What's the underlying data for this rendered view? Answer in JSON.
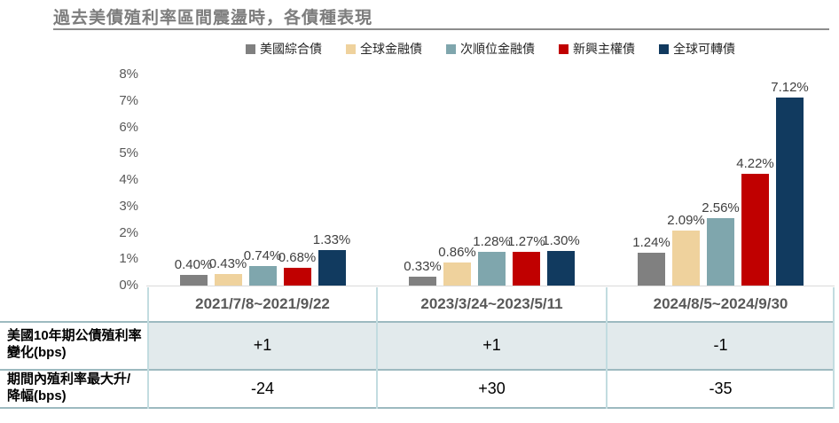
{
  "title": "過去美債殖利率區間震盪時，各債種表現",
  "chart_data": {
    "type": "bar",
    "title": "過去美債殖利率區間震盪時，各債種表現",
    "categories": [
      "2021/7/8~2021/9/22",
      "2023/3/24~2023/5/11",
      "2024/8/5~2024/9/30"
    ],
    "series": [
      {
        "name": "美國綜合債",
        "color": "#808080",
        "values": [
          0.4,
          0.33,
          1.24
        ]
      },
      {
        "name": "全球金融債",
        "color": "#efd29d",
        "values": [
          0.43,
          0.86,
          2.09
        ]
      },
      {
        "name": "次順位金融債",
        "color": "#7fa6ad",
        "values": [
          0.74,
          1.28,
          2.56
        ]
      },
      {
        "name": "新興主權債",
        "color": "#c00000",
        "values": [
          0.68,
          1.27,
          4.22
        ]
      },
      {
        "name": "全球可轉債",
        "color": "#113a5f",
        "values": [
          1.33,
          1.3,
          7.12
        ]
      }
    ],
    "ylabel": "",
    "xlabel": "",
    "ylim": [
      0,
      8
    ],
    "ytick_step": 1,
    "ytick_suffix": "%",
    "value_label_format": "0.00%",
    "legend_position": "top",
    "grid": false
  },
  "table": {
    "corner_label": "",
    "col_headers": [
      "2021/7/8~2021/9/22",
      "2023/3/24~2023/5/11",
      "2024/8/5~2024/9/30"
    ],
    "rows": [
      {
        "label": "美國10年期公債殖利率變化(bps)",
        "values": [
          "+1",
          "+1",
          "-1"
        ]
      },
      {
        "label": "期間內殖利率最大升/降幅(bps)",
        "values": [
          "-24",
          "+30",
          "-35"
        ]
      }
    ]
  },
  "colors": {
    "title_text": "#7d7d7d",
    "title_rule": "#8c8c8c",
    "axis_text": "#595959",
    "value_label_text": "#404040",
    "table_header_text": "#595959",
    "table_shaded_row": "#e2eaec",
    "table_hline": "#9dbac0",
    "table_vline": "#c2dce0",
    "axis_line": "#d9d9d9"
  }
}
